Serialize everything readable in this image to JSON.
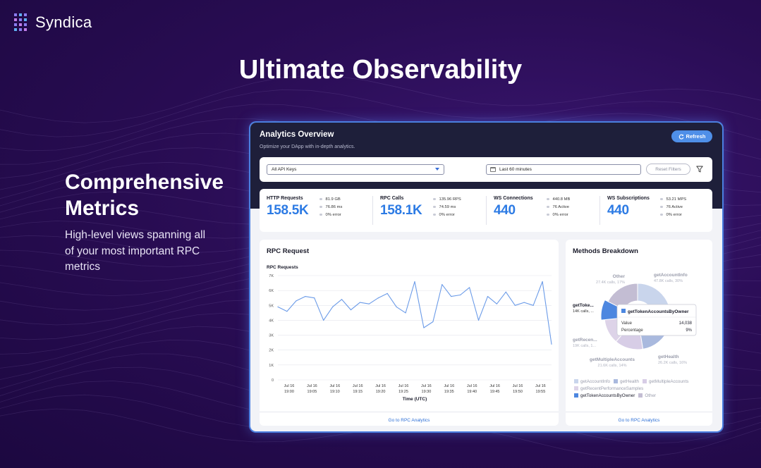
{
  "brand": {
    "name": "Syndica"
  },
  "headline": "Ultimate Observability",
  "side": {
    "title": "Comprehensive Metrics",
    "description": "High-level views spanning all of your most important RPC metrics"
  },
  "dashboard": {
    "title": "Analytics Overview",
    "subtitle": "Optimize your DApp with in-depth analytics.",
    "refresh_label": "Refresh",
    "filters": {
      "api_keys_value": "All API Keys",
      "time_range_value": "Last 60 minutes",
      "reset_label": "Reset Filters"
    },
    "metrics": [
      {
        "label": "HTTP Requests",
        "value": "158.5K",
        "stats": [
          "81.9 GB",
          "76.86 ms",
          "0% error"
        ]
      },
      {
        "label": "RPC Calls",
        "value": "158.1K",
        "stats": [
          "135.96 RPS",
          "74.59 ms",
          "0% error"
        ]
      },
      {
        "label": "WS Connections",
        "value": "440",
        "stats": [
          "440.8 MB",
          "76 Active",
          "0% error"
        ]
      },
      {
        "label": "WS Subscriptions",
        "value": "440",
        "stats": [
          "53.21 MPS",
          "76 Active",
          "0% error"
        ]
      }
    ],
    "rpc_card": {
      "title": "RPC Request",
      "link": "Go to RPC Analytics"
    },
    "methods_card": {
      "title": "Methods Breakdown",
      "link": "Go to RPC Analytics",
      "tooltip": {
        "name": "getTokenAccountsByOwner",
        "value_label": "Value",
        "value": "14,038",
        "percentage_label": "Percentage",
        "percentage": "9%"
      }
    }
  },
  "chart_data": [
    {
      "type": "line",
      "title": "RPC Requests",
      "xlabel": "Time (UTC)",
      "ylabel": "",
      "ylim": [
        0,
        7000
      ],
      "yticks": [
        "0",
        "1K",
        "2K",
        "3K",
        "4K",
        "5K",
        "6K",
        "7K"
      ],
      "xticks": [
        [
          "Jul 16",
          "19:00"
        ],
        [
          "Jul 16",
          "19:05"
        ],
        [
          "Jul 16",
          "19:10"
        ],
        [
          "Jul 16",
          "19:15"
        ],
        [
          "Jul 16",
          "19:20"
        ],
        [
          "Jul 16",
          "19:25"
        ],
        [
          "Jul 16",
          "19:30"
        ],
        [
          "Jul 16",
          "19:35"
        ],
        [
          "Jul 16",
          "19:40"
        ],
        [
          "Jul 16",
          "19:45"
        ],
        [
          "Jul 16",
          "19:50"
        ],
        [
          "Jul 16",
          "19:55"
        ]
      ],
      "grid": true,
      "color": "#6b9be8",
      "series": [
        {
          "values": [
            4900,
            4600,
            5300,
            5600,
            5500,
            4000,
            4900,
            5400,
            4700,
            5200,
            5100,
            5500,
            5800,
            4900,
            4500,
            6600,
            3500,
            3900,
            6400,
            5600,
            5700,
            6200,
            4000,
            5600,
            5100,
            5900,
            5000,
            5200,
            5000,
            6600,
            2400
          ]
        }
      ]
    },
    {
      "type": "pie",
      "title": "",
      "legend_position": "bottom",
      "slices": [
        {
          "name": "getAccountInfo",
          "value": 47800,
          "label": "getAccountInfo",
          "sub": "47.8K calls, 30%",
          "color": "#c9d5ec",
          "active": false
        },
        {
          "name": "getHealth",
          "value": 26200,
          "label": "getHealth",
          "sub": "26.2K calls, 16%",
          "color": "#a9b9de",
          "active": false
        },
        {
          "name": "getMultipleAccounts",
          "value": 21600,
          "label": "getMultipleAccounts",
          "sub": "21.6K calls, 14%",
          "color": "#d7cde6",
          "active": false
        },
        {
          "name": "getRecentPerformanceSamples",
          "value": 19000,
          "label": "getRecen...",
          "sub": "19K calls, 1...",
          "color": "#ddd3e8",
          "active": false
        },
        {
          "name": "getTokenAccountsByOwner",
          "value": 14038,
          "label": "getToke...",
          "sub": "14K calls, ...",
          "color": "#4d87e0",
          "active": true
        },
        {
          "name": "Other",
          "value": 27400,
          "label": "Other",
          "sub": "27.4K calls, 17%",
          "color": "#c3bdd3",
          "active": false
        }
      ]
    }
  ]
}
